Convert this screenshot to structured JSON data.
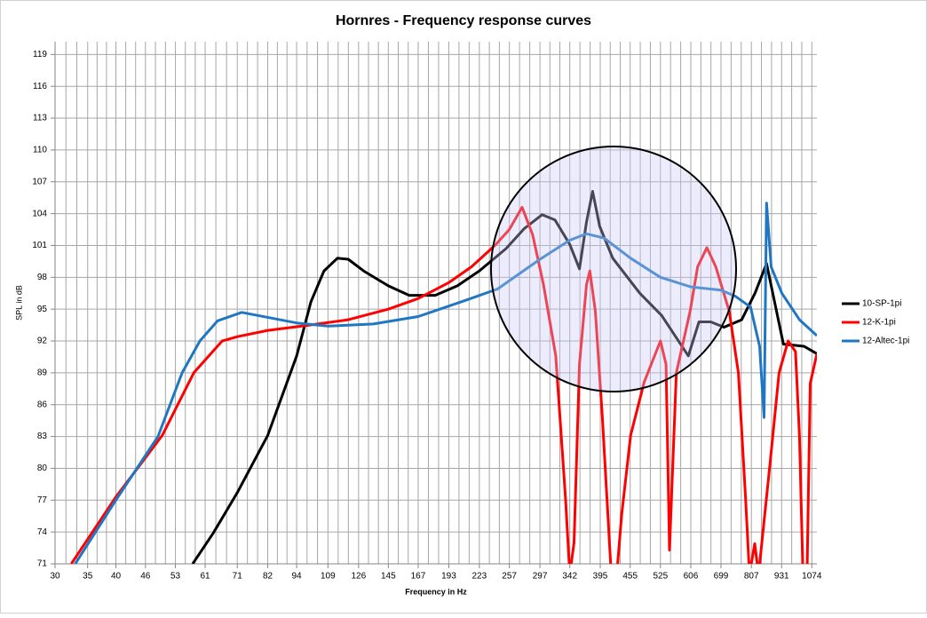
{
  "chart_data": {
    "type": "line",
    "title": "Hornres - Frequency response curves",
    "x_label": "Frequency in Hz",
    "y_label": "SPL in dB",
    "xscale": "log",
    "xlim": [
      30,
      1100
    ],
    "xticks": [
      30,
      35,
      40,
      46,
      53,
      61,
      71,
      82,
      94,
      109,
      126,
      145,
      167,
      193,
      223,
      257,
      297,
      342,
      395,
      455,
      525,
      606,
      699,
      807,
      931,
      1074
    ],
    "ylim": [
      71,
      120.2
    ],
    "yticks": [
      71,
      74,
      77,
      80,
      83,
      86,
      89,
      92,
      95,
      98,
      101,
      104,
      107,
      110,
      113,
      116,
      119
    ],
    "grid": true,
    "legend": "right",
    "series": [
      {
        "name": "10-SP-1pi",
        "color": "#000000",
        "x": [
          57.5,
          63.4,
          71,
          82,
          94,
          100.6,
          107,
          114,
          120,
          129,
          145,
          160,
          181,
          201,
          223,
          253,
          276,
          300,
          319,
          342,
          358,
          370,
          381,
          394,
          419,
          476,
          528,
          599,
          630,
          666,
          709,
          771,
          821,
          867,
          893,
          939,
          1035,
          1100
        ],
        "values": [
          71,
          73.9,
          77.7,
          83.1,
          90.6,
          95.7,
          98.6,
          99.8,
          99.7,
          98.6,
          97.2,
          96.3,
          96.3,
          97.2,
          98.6,
          100.7,
          102.6,
          103.9,
          103.4,
          101.1,
          98.8,
          103.2,
          106.1,
          102.8,
          99.8,
          96.5,
          94.4,
          90.6,
          93.8,
          93.8,
          93.3,
          94,
          96.5,
          99.3,
          96.5,
          91.7,
          91.5,
          90.8
        ]
      },
      {
        "name": "12-K-1pi",
        "color": "#ff0000",
        "x": [
          32.4,
          40,
          49.8,
          57.8,
          66.1,
          71,
          82,
          100,
          120,
          145,
          167,
          193,
          215,
          240,
          257,
          273,
          287,
          302,
          320,
          335,
          342,
          349,
          358,
          370,
          376,
          386,
          399,
          416,
          427,
          437,
          456,
          486,
          525,
          539,
          548,
          566,
          604,
          626,
          654,
          682,
          727,
          759,
          785,
          800,
          820,
          835,
          882,
          920,
          960,
          994,
          1013,
          1030,
          1050,
          1066,
          1100
        ],
        "values": [
          71,
          77.3,
          83.1,
          89,
          92,
          92.4,
          93,
          93.5,
          94,
          95,
          96,
          97.5,
          99,
          101,
          102.5,
          104.6,
          102,
          97.3,
          90.6,
          77.3,
          70,
          73,
          89.8,
          97.3,
          98.6,
          94.8,
          84.8,
          70,
          70,
          75.6,
          83.1,
          88.1,
          92,
          89.8,
          72.3,
          89,
          94.8,
          99,
          100.8,
          99,
          94.8,
          89,
          77.3,
          70,
          72.9,
          70,
          80.6,
          89,
          92,
          91,
          83,
          70,
          70,
          88,
          90.8
        ]
      },
      {
        "name": "12-Altec-1pi",
        "color": "#1f77c4",
        "x": [
          33,
          40,
          48.8,
          54.7,
          59.5,
          64.7,
          72.5,
          94,
          109,
          135,
          167,
          205,
          243,
          297,
          342,
          370,
          402,
          456,
          525,
          606,
          699,
          749,
          804,
          839,
          857,
          867,
          886,
          932,
          1013,
          1100
        ],
        "values": [
          71,
          77,
          83,
          89,
          92,
          93.9,
          94.7,
          93.7,
          93.4,
          93.6,
          94.3,
          95.7,
          96.9,
          99.7,
          101.5,
          102.1,
          101.7,
          99.8,
          98,
          97.1,
          96.8,
          96.2,
          95.2,
          91.5,
          84.8,
          105,
          99,
          96.5,
          94,
          92.5
        ]
      }
    ]
  }
}
